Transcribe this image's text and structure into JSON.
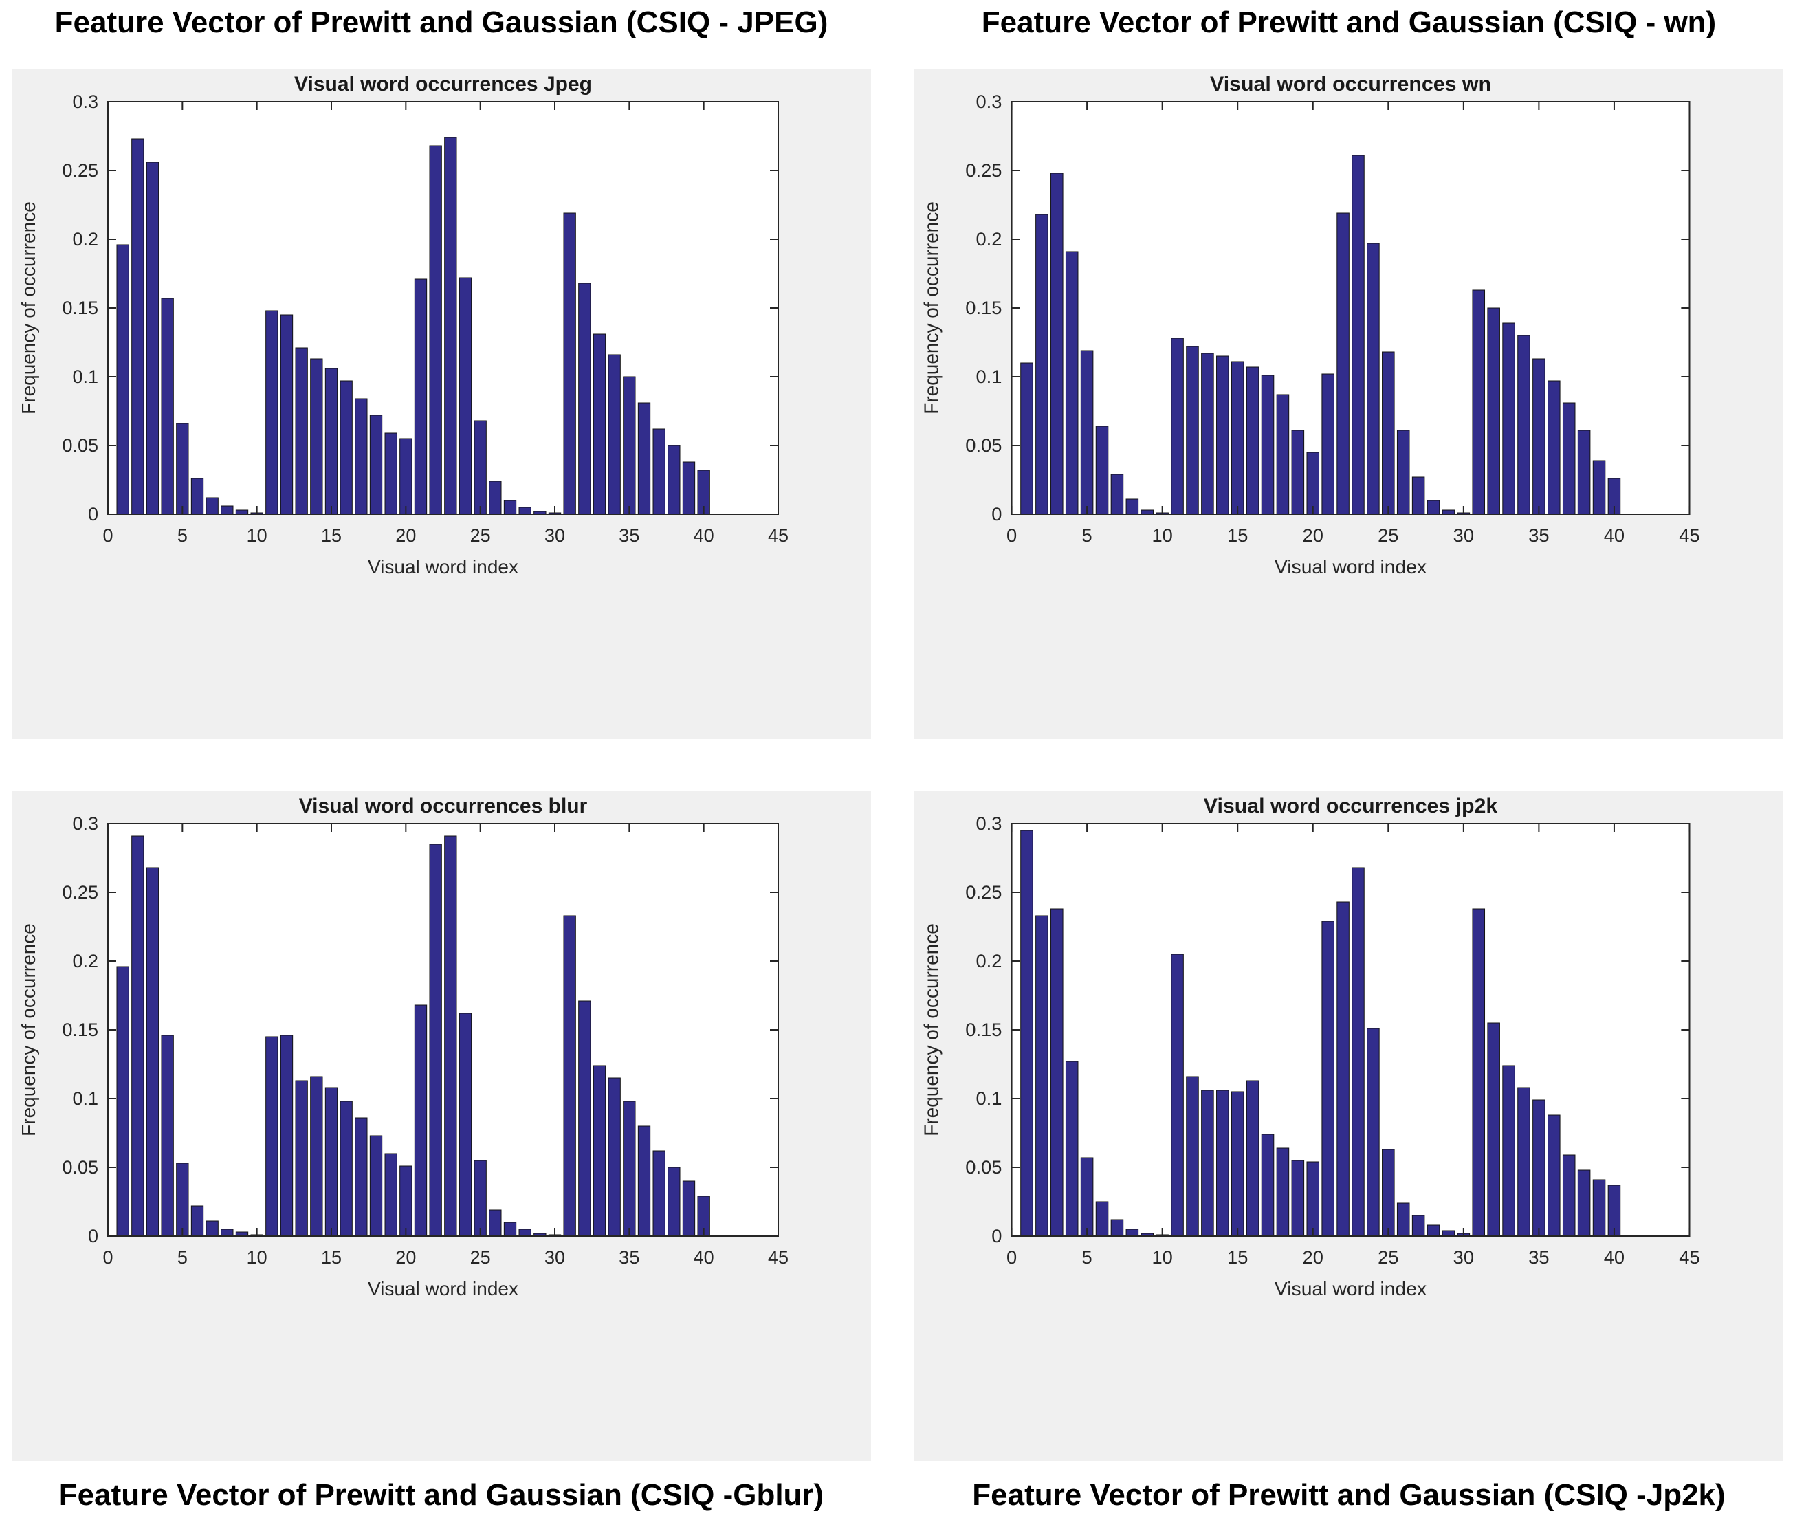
{
  "style": {
    "panel_bg": "#f0f0f0",
    "plot_bg": "#ffffff",
    "axis_color": "#262626",
    "title_color": "#1a1a1a",
    "bar_fill": "#322d8c",
    "bar_edge": "#141414",
    "caption_color": "#000000"
  },
  "captions": {
    "top_left": "Feature Vector of Prewitt and Gaussian (CSIQ - JPEG)",
    "top_right": "Feature Vector of Prewitt and Gaussian (CSIQ - wn)",
    "bottom_left": "Feature Vector of Prewitt and Gaussian (CSIQ -Gblur)",
    "bottom_right": "Feature Vector of Prewitt and Gaussian (CSIQ -Jp2k)"
  },
  "chart_data": [
    {
      "type": "bar",
      "position": "top-left",
      "title": "Visual word occurrences Jpeg",
      "xlabel": "Visual word index",
      "ylabel": "Frequency of occurrence",
      "xlim": [
        0,
        45
      ],
      "ylim": [
        0,
        0.3
      ],
      "xticks": [
        0,
        5,
        10,
        15,
        20,
        25,
        30,
        35,
        40,
        45
      ],
      "yticks": [
        0,
        0.05,
        0.1,
        0.15,
        0.2,
        0.25,
        0.3
      ],
      "grid": false,
      "x": [
        1,
        2,
        3,
        4,
        5,
        6,
        7,
        8,
        9,
        10,
        11,
        12,
        13,
        14,
        15,
        16,
        17,
        18,
        19,
        20,
        21,
        22,
        23,
        24,
        25,
        26,
        27,
        28,
        29,
        30,
        31,
        32,
        33,
        34,
        35,
        36,
        37,
        38,
        39,
        40
      ],
      "values": [
        0.196,
        0.273,
        0.256,
        0.157,
        0.066,
        0.026,
        0.012,
        0.006,
        0.003,
        0.001,
        0.148,
        0.145,
        0.121,
        0.113,
        0.106,
        0.097,
        0.084,
        0.072,
        0.059,
        0.055,
        0.171,
        0.268,
        0.274,
        0.172,
        0.068,
        0.024,
        0.01,
        0.005,
        0.002,
        0.001,
        0.219,
        0.168,
        0.131,
        0.116,
        0.1,
        0.081,
        0.062,
        0.05,
        0.038,
        0.032
      ]
    },
    {
      "type": "bar",
      "position": "top-right",
      "title": "Visual word occurrences wn",
      "xlabel": "Visual word index",
      "ylabel": "Frequency of occurrence",
      "xlim": [
        0,
        45
      ],
      "ylim": [
        0,
        0.3
      ],
      "xticks": [
        0,
        5,
        10,
        15,
        20,
        25,
        30,
        35,
        40,
        45
      ],
      "yticks": [
        0,
        0.05,
        0.1,
        0.15,
        0.2,
        0.25,
        0.3
      ],
      "grid": false,
      "x": [
        1,
        2,
        3,
        4,
        5,
        6,
        7,
        8,
        9,
        10,
        11,
        12,
        13,
        14,
        15,
        16,
        17,
        18,
        19,
        20,
        21,
        22,
        23,
        24,
        25,
        26,
        27,
        28,
        29,
        30,
        31,
        32,
        33,
        34,
        35,
        36,
        37,
        38,
        39,
        40
      ],
      "values": [
        0.11,
        0.218,
        0.248,
        0.191,
        0.119,
        0.064,
        0.029,
        0.011,
        0.003,
        0.001,
        0.128,
        0.122,
        0.117,
        0.115,
        0.111,
        0.107,
        0.101,
        0.087,
        0.061,
        0.045,
        0.102,
        0.219,
        0.261,
        0.197,
        0.118,
        0.061,
        0.027,
        0.01,
        0.003,
        0.001,
        0.163,
        0.15,
        0.139,
        0.13,
        0.113,
        0.097,
        0.081,
        0.061,
        0.039,
        0.026
      ]
    },
    {
      "type": "bar",
      "position": "bottom-left",
      "title": "Visual word occurrences blur",
      "xlabel": "Visual word index",
      "ylabel": "Frequency of occurrence",
      "xlim": [
        0,
        45
      ],
      "ylim": [
        0,
        0.3
      ],
      "xticks": [
        0,
        5,
        10,
        15,
        20,
        25,
        30,
        35,
        40,
        45
      ],
      "yticks": [
        0,
        0.05,
        0.1,
        0.15,
        0.2,
        0.25,
        0.3
      ],
      "grid": false,
      "x": [
        1,
        2,
        3,
        4,
        5,
        6,
        7,
        8,
        9,
        10,
        11,
        12,
        13,
        14,
        15,
        16,
        17,
        18,
        19,
        20,
        21,
        22,
        23,
        24,
        25,
        26,
        27,
        28,
        29,
        30,
        31,
        32,
        33,
        34,
        35,
        36,
        37,
        38,
        39,
        40
      ],
      "values": [
        0.196,
        0.291,
        0.268,
        0.146,
        0.053,
        0.022,
        0.011,
        0.005,
        0.003,
        0.001,
        0.145,
        0.146,
        0.113,
        0.116,
        0.108,
        0.098,
        0.086,
        0.073,
        0.06,
        0.051,
        0.168,
        0.285,
        0.291,
        0.162,
        0.055,
        0.019,
        0.01,
        0.005,
        0.002,
        0.001,
        0.233,
        0.171,
        0.124,
        0.115,
        0.098,
        0.08,
        0.062,
        0.05,
        0.04,
        0.029
      ]
    },
    {
      "type": "bar",
      "position": "bottom-right",
      "title": "Visual word occurrences jp2k",
      "xlabel": "Visual word index",
      "ylabel": "Frequency of occurrence",
      "xlim": [
        0,
        45
      ],
      "ylim": [
        0,
        0.3
      ],
      "xticks": [
        0,
        5,
        10,
        15,
        20,
        25,
        30,
        35,
        40,
        45
      ],
      "yticks": [
        0,
        0.05,
        0.1,
        0.15,
        0.2,
        0.25,
        0.3
      ],
      "grid": false,
      "x": [
        1,
        2,
        3,
        4,
        5,
        6,
        7,
        8,
        9,
        10,
        11,
        12,
        13,
        14,
        15,
        16,
        17,
        18,
        19,
        20,
        21,
        22,
        23,
        24,
        25,
        26,
        27,
        28,
        29,
        30,
        31,
        32,
        33,
        34,
        35,
        36,
        37,
        38,
        39,
        40
      ],
      "values": [
        0.295,
        0.233,
        0.238,
        0.127,
        0.057,
        0.025,
        0.012,
        0.005,
        0.002,
        0.001,
        0.205,
        0.116,
        0.106,
        0.106,
        0.105,
        0.113,
        0.074,
        0.064,
        0.055,
        0.054,
        0.229,
        0.243,
        0.268,
        0.151,
        0.063,
        0.024,
        0.015,
        0.008,
        0.004,
        0.002,
        0.238,
        0.155,
        0.124,
        0.108,
        0.099,
        0.088,
        0.059,
        0.048,
        0.041,
        0.037
      ]
    }
  ]
}
